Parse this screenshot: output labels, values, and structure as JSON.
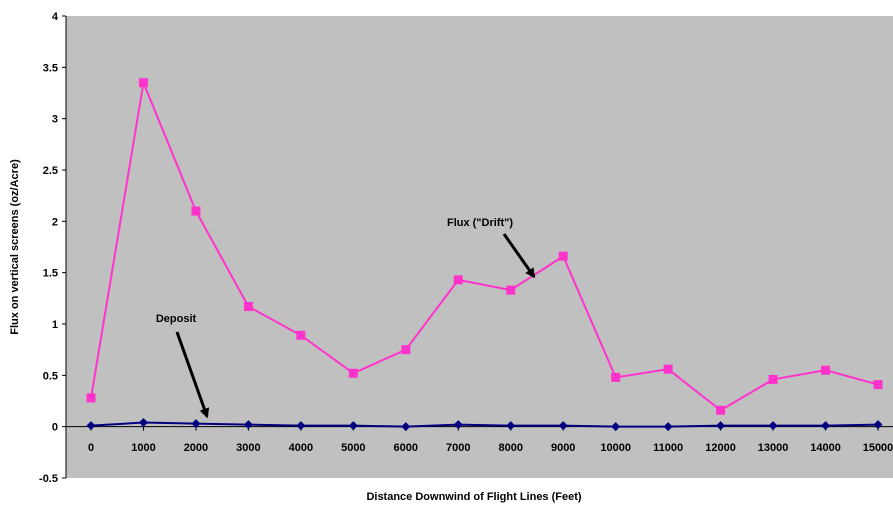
{
  "chart_data": {
    "type": "line",
    "title": "",
    "xlabel": "Distance Downwind of Flight Lines (Feet)",
    "ylabel": "Flux on vertical screens (oz/Acre)",
    "x": [
      0,
      1000,
      2000,
      3000,
      4000,
      5000,
      6000,
      7000,
      8000,
      9000,
      10000,
      11000,
      12000,
      13000,
      14000,
      15000
    ],
    "x_tick_labels": [
      "0",
      "1000",
      "2000",
      "3000",
      "4000",
      "5000",
      "6000",
      "7000",
      "8000",
      "9000",
      "10000",
      "11000",
      "12000",
      "13000",
      "14000",
      "15000"
    ],
    "xlim": [
      0,
      15000
    ],
    "ylim": [
      -0.5,
      4
    ],
    "y_ticks": [
      -0.5,
      0,
      0.5,
      1,
      1.5,
      2,
      2.5,
      3,
      3.5,
      4
    ],
    "y_tick_labels": [
      "-0.5",
      "0",
      "0.5",
      "1",
      "1.5",
      "2",
      "2.5",
      "3",
      "3.5",
      "4"
    ],
    "grid": false,
    "plot_background": "#c0c0c0",
    "series": [
      {
        "name": "Flux (\"Drift\")",
        "color": "#ff33cc",
        "marker": "square",
        "values": [
          0.28,
          3.35,
          2.1,
          1.17,
          0.89,
          0.52,
          0.75,
          1.43,
          1.33,
          1.66,
          0.48,
          0.56,
          0.16,
          0.46,
          0.55,
          0.41
        ]
      },
      {
        "name": "Deposit",
        "color": "#000080",
        "marker": "diamond",
        "values": [
          0.01,
          0.04,
          0.03,
          0.02,
          0.01,
          0.01,
          0.0,
          0.02,
          0.01,
          0.01,
          0.0,
          0.0,
          0.01,
          0.01,
          0.01,
          0.02
        ]
      }
    ],
    "annotations": [
      {
        "text": "Flux (\"Drift\")",
        "points_to_x": 8500,
        "points_to_y": 1.5
      },
      {
        "text": "Deposit",
        "points_to_x": 2250,
        "points_to_y": 0.06
      }
    ]
  }
}
